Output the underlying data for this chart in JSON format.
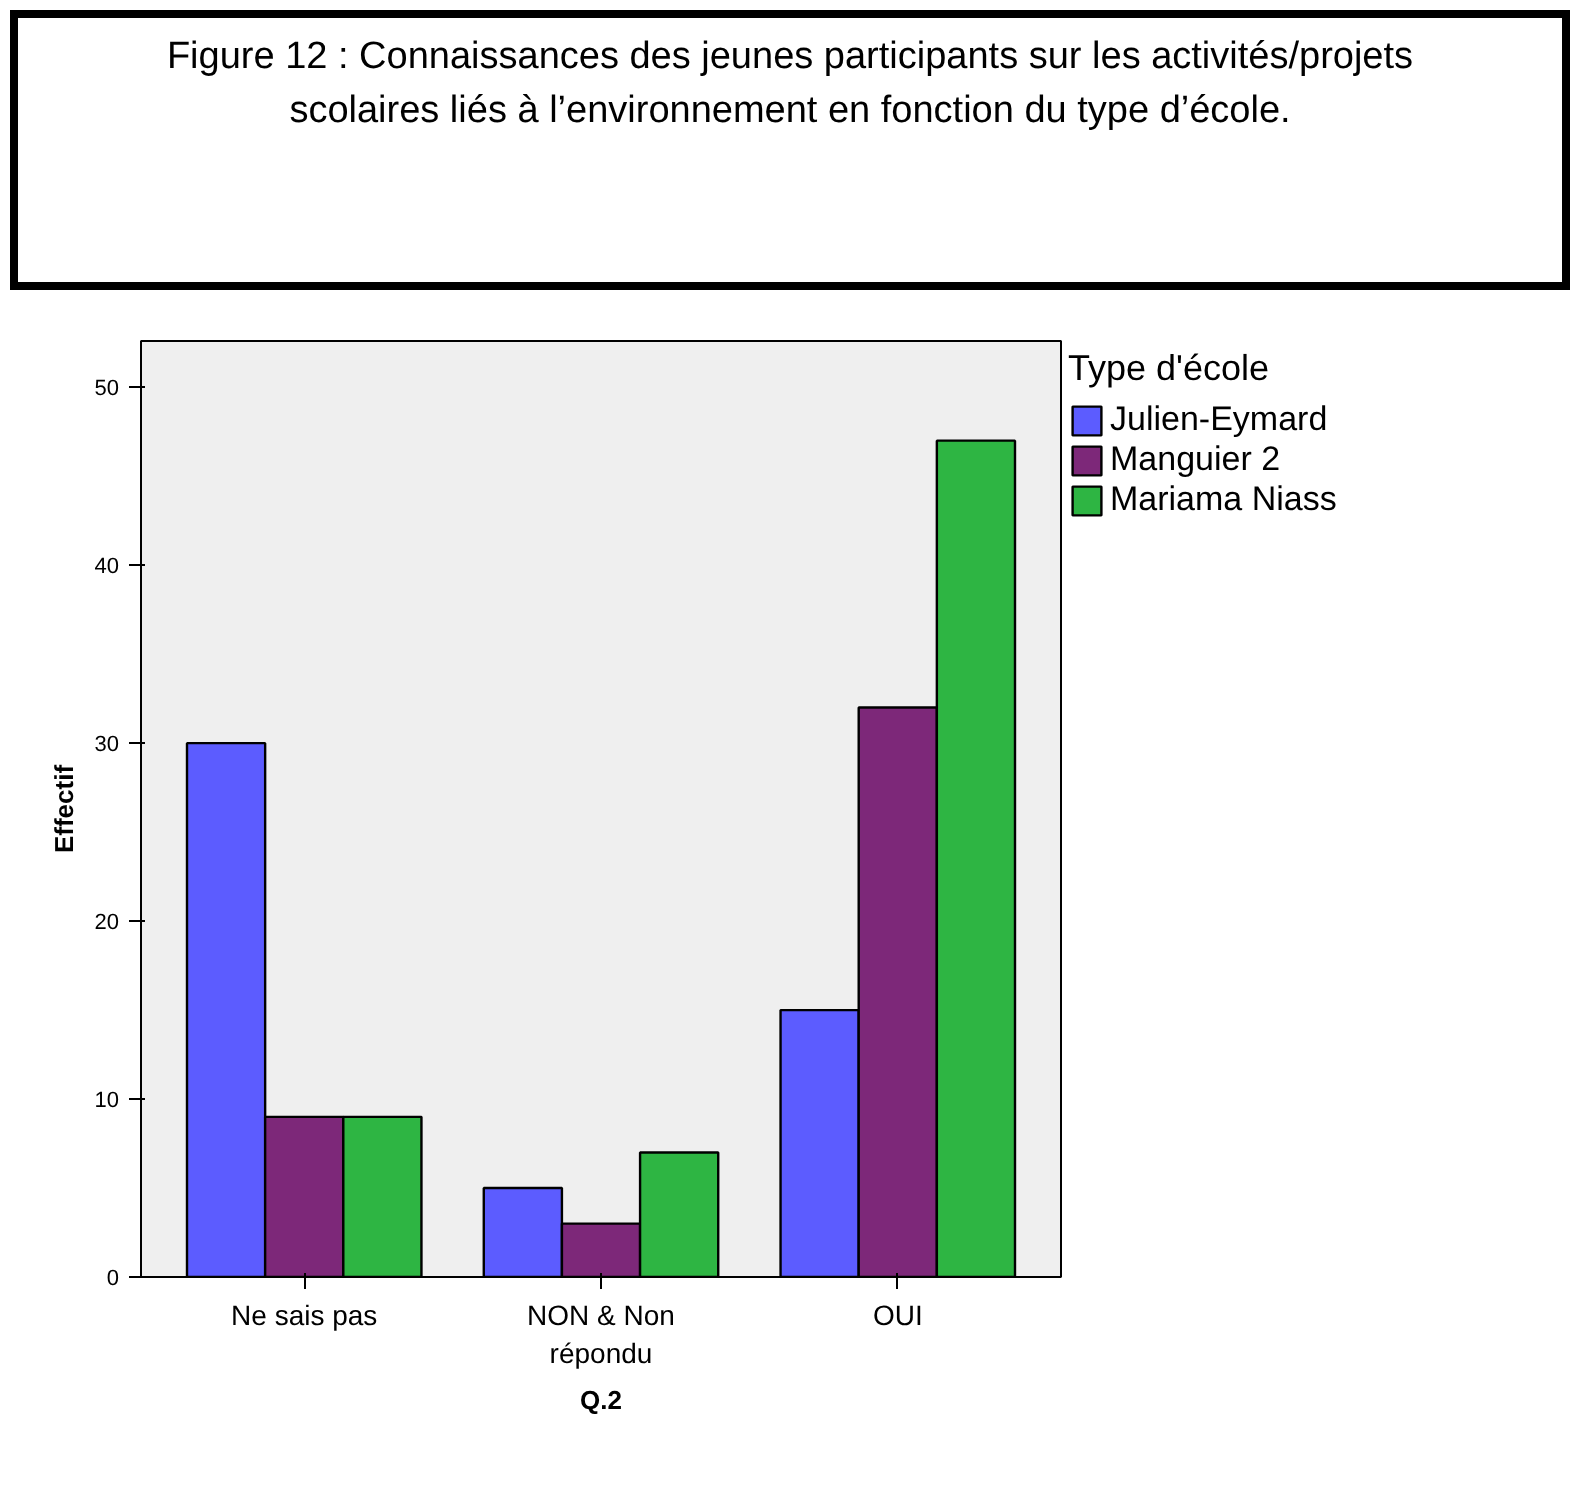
{
  "chart_data": {
    "type": "bar",
    "title": "Figure 12 : Connaissances des jeunes participants sur les activités/projets scolaires liés à l’environnement en fonction du type d’école.",
    "xlabel": "Q.2",
    "ylabel": "Effectif",
    "legend_title": "Type d'école",
    "categories": [
      "Ne sais pas",
      "NON & Non\nrépondu",
      "OUI"
    ],
    "series": [
      {
        "name": "Julien-Eymard",
        "color": "#5c5cff",
        "values": [
          30,
          5,
          15
        ]
      },
      {
        "name": "Manguier 2",
        "color": "#7d2879",
        "values": [
          9,
          3,
          32
        ]
      },
      {
        "name": "Mariama Niass",
        "color": "#2eb543",
        "values": [
          9,
          7,
          47
        ]
      }
    ],
    "ylim": [
      0,
      52.6
    ],
    "yticks": [
      0,
      10,
      20,
      30,
      40,
      50
    ],
    "grid": false,
    "legend": "right"
  }
}
